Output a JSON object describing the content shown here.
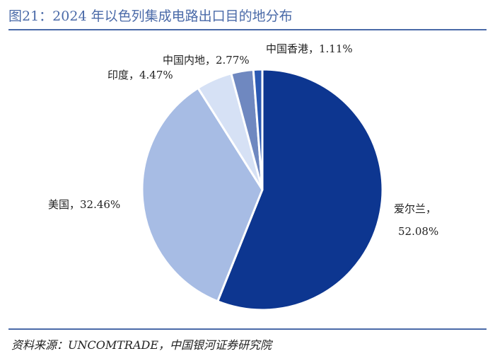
{
  "header": {
    "title": "图21：2024 年以色列集成电路出口目的地分布"
  },
  "footer": {
    "source": "资料来源：UNCOMTRADE，中国银河证券研究院"
  },
  "chart_data": {
    "type": "pie",
    "title": "图21：2024 年以色列集成电路出口目的地分布",
    "slices": [
      {
        "name": "爱尔兰",
        "value": 52.08,
        "value_label": "52.08%",
        "color": "#0d3690"
      },
      {
        "name": "美国",
        "value": 32.46,
        "value_label": "32.46%",
        "color": "#a7bce4"
      },
      {
        "name": "印度",
        "value": 4.47,
        "value_label": "4.47%",
        "color": "#d6e1f5"
      },
      {
        "name": "中国内地",
        "value": 2.77,
        "value_label": "2.77%",
        "color": "#6f88c0"
      },
      {
        "name": "中国香港",
        "value": 1.11,
        "value_label": "1.11%",
        "color": "#2b59b3"
      }
    ],
    "labels": [
      {
        "text": "爱尔兰，"
      },
      {
        "text": "52.08%"
      },
      {
        "text": "美国，32.46%"
      },
      {
        "text": "印度，4.47%"
      },
      {
        "text": "中国内地，2.77%"
      },
      {
        "text": "中国香港，1.11%"
      }
    ]
  }
}
